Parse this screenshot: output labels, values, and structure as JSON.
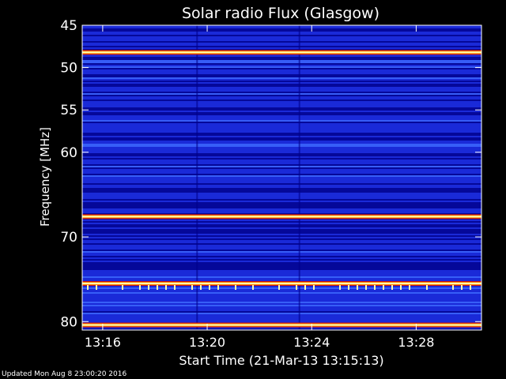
{
  "chart_data": {
    "type": "heatmap",
    "title": "Solar radio Flux (Glasgow)",
    "xlabel": "Start Time (21-Mar-13 13:15:13)",
    "ylabel": "Frequency [MHz]",
    "x_unit": "time (HH:MM)",
    "xlim": [
      "13:15:13",
      "13:30:30"
    ],
    "ylim": [
      45,
      81
    ],
    "y_inverted": true,
    "x_ticks": [
      "13:16",
      "13:20",
      "13:24",
      "13:28"
    ],
    "y_ticks": [
      45,
      50,
      55,
      60,
      70,
      80
    ],
    "colormap": [
      "#00008a",
      "#1a2ad8",
      "#3f6cff",
      "#cc1010",
      "#ff8800",
      "#ffffb0"
    ],
    "background_level": "low (blue)",
    "bright_bands_mhz": [
      {
        "freq": 48.2,
        "intensity": "high"
      },
      {
        "freq": 67.6,
        "intensity": "very high"
      },
      {
        "freq": 75.5,
        "intensity": "high, intermittent"
      },
      {
        "freq": 80.4,
        "intensity": "high"
      }
    ]
  },
  "footer": {
    "updated": "Updated Mon Aug  8 23:00:20 2016"
  }
}
